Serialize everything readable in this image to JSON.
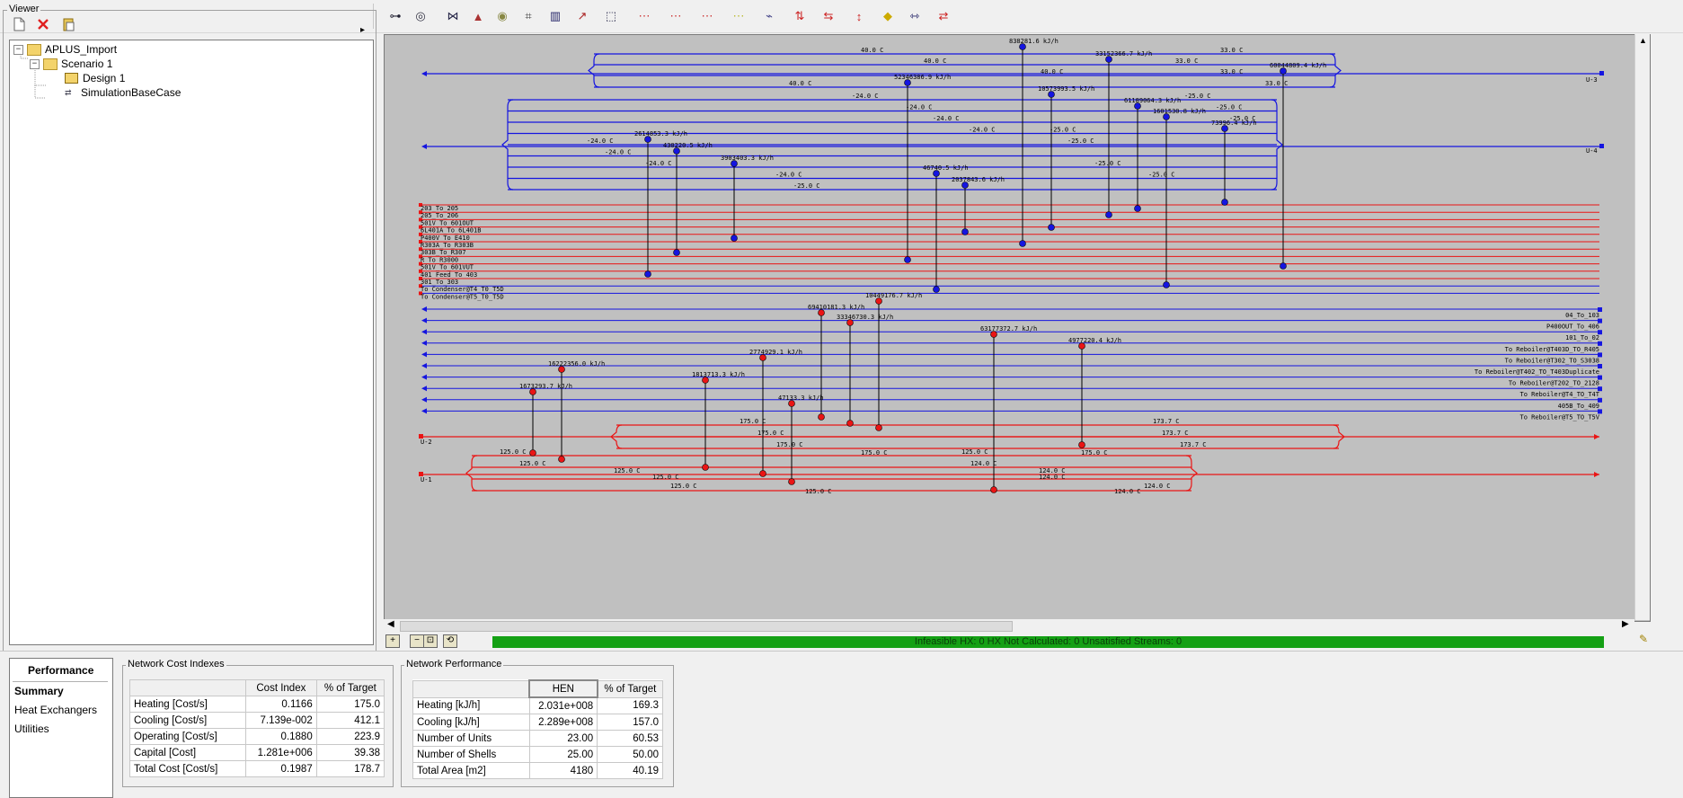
{
  "viewer": {
    "title": "Viewer",
    "tree": [
      {
        "label": "APLUS_Import",
        "level": 0,
        "icon": "folder-icon",
        "expander": "−"
      },
      {
        "label": "Scenario 1",
        "level": 1,
        "icon": "folder-icon",
        "expander": "−"
      },
      {
        "label": "Design 1",
        "level": 2,
        "icon": "design-icon",
        "expander": ""
      },
      {
        "label": "SimulationBaseCase",
        "level": 2,
        "icon": "simulation-case-icon",
        "expander": ""
      }
    ]
  },
  "toolbar": {
    "left_icons": [
      "new-document-icon",
      "delete-icon",
      "paste-icon"
    ],
    "right_icons": [
      "connect-streams-icon",
      "rotate-icon",
      "stream-tools-icon",
      "bottle-icon",
      "stack-icon",
      "select-tool-icon",
      "chart-icon",
      "edit-line-icon",
      "network-icon",
      "split-stream-icon",
      "split-2-icon",
      "split-3-icon",
      "merge-icon",
      "move-node-icon",
      "balance-icon",
      "swap-icon",
      "cross-icon",
      "yellow-node-icon",
      "join-icon",
      "reverse-icon"
    ]
  },
  "grid_diagram": {
    "hot_utilities": [
      {
        "label": "U-2",
        "temps": [
          "175.0 C",
          "175.0 C",
          "175.0 C",
          "175.0 C",
          "175.0 C",
          "173.7 C",
          "173.7 C",
          "173.7 C"
        ]
      },
      {
        "label": "U-1",
        "temps": [
          "125.0 C",
          "125.0 C",
          "125.0 C",
          "125.0 C",
          "125.0 C",
          "125.0 C",
          "125.0 C",
          "124.0 C",
          "124.0 C",
          "124.0 C",
          "124.0 C",
          "124.0 C"
        ]
      }
    ],
    "cold_utilities": [
      {
        "label": "U-3",
        "temps": [
          "40.0 C",
          "40.0 C",
          "40.0 C",
          "40.0 C",
          "33.0 C",
          "33.0 C",
          "33.0 C",
          "33.0 C"
        ]
      },
      {
        "label": "U-4",
        "temps": [
          "-24.0 C",
          "-24.0 C",
          "-24.0 C",
          "-24.0 C",
          "-24.0 C",
          "-24.0 C",
          "-24.0 C",
          "-24.0 C",
          "-25.0 C",
          "-25.0 C",
          "-25.0 C",
          "-25.0 C",
          "-25.0 C",
          "-25.0 C",
          "-25.0 C",
          "-25.0 C"
        ]
      }
    ],
    "hot_streams": [
      "203_To_205",
      "205_To_206",
      "501V_To_601OUT",
      "6L401A_To_6L401B",
      "P400V_To_E410",
      "R303A_To_R303B",
      "303B_To_R307",
      "R_To_R3000",
      "501V_To_601VUT",
      "401_Feed_To_403",
      "301_To_303",
      "To Condenser@T4_T0_T5D",
      "To Condenser@T5_T0_T5D"
    ],
    "cold_streams": [
      "04_To_103",
      "P400OUT_To_406",
      "101_To_02",
      "To Reboiler@T403D_TO_R405",
      "To Reboiler@T302_TO_S3038",
      "To Reboiler@T402_TO_T403Duplicate",
      "To Reboiler@T202_TO_2128",
      "To Reboiler@T4_TO_T4T",
      "405B_To_409",
      "To Reboiler@T5_TO_T5V"
    ],
    "duties": [
      "838281.6 kJ/h",
      "33152366.7 kJ/h",
      "60044809.4 kJ/h",
      "52346386.9 kJ/h",
      "10573993.5 kJ/h",
      "61189064.3 kJ/h",
      "1601530.8 kJ/h",
      "73996.4 kJ/h",
      "2614853.3 kJ/h",
      "430220.5 kJ/h",
      "3903403.3 kJ/h",
      "46740.5 kJ/h",
      "2037843.6 kJ/h",
      "10449176.7 kJ/h",
      "69410181.3 kJ/h",
      "33346730.3 kJ/h",
      "63177372.7 kJ/h",
      "4977220.4 kJ/h",
      "2774929.1 kJ/h",
      "16222356.0 kJ/h",
      "1813713.3 kJ/h",
      "1673293.7 kJ/h",
      "47133.3 kJ/h"
    ],
    "status_text": "Infeasible HX: 0   HX Not Calculated: 0     Unsatisfied Streams: 0",
    "zoom_buttons": [
      "+",
      "−",
      "⊡",
      "⟲"
    ]
  },
  "performance": {
    "title": "Performance",
    "tabs": [
      "Summary",
      "Heat Exchangers",
      "Utilities"
    ],
    "cost_indexes": {
      "title": "Network Cost Indexes",
      "columns": [
        "",
        "Cost Index",
        "% of Target"
      ],
      "rows": [
        [
          "Heating [Cost/s]",
          "0.1166",
          "175.0"
        ],
        [
          "Cooling [Cost/s]",
          "7.139e-002",
          "412.1"
        ],
        [
          "Operating [Cost/s]",
          "0.1880",
          "223.9"
        ],
        [
          "Capital [Cost]",
          "1.281e+006",
          "39.38"
        ],
        [
          "Total Cost [Cost/s]",
          "0.1987",
          "178.7"
        ]
      ]
    },
    "network_performance": {
      "title": "Network Performance",
      "columns": [
        "",
        "HEN",
        "% of Target"
      ],
      "rows": [
        [
          "Heating [kJ/h]",
          "2.031e+008",
          "169.3"
        ],
        [
          "Cooling [kJ/h]",
          "2.289e+008",
          "157.0"
        ],
        [
          "Number of Units",
          "23.00",
          "60.53"
        ],
        [
          "Number of Shells",
          "25.00",
          "50.00"
        ],
        [
          "Total Area [m2]",
          "4180",
          "40.19"
        ]
      ]
    }
  }
}
